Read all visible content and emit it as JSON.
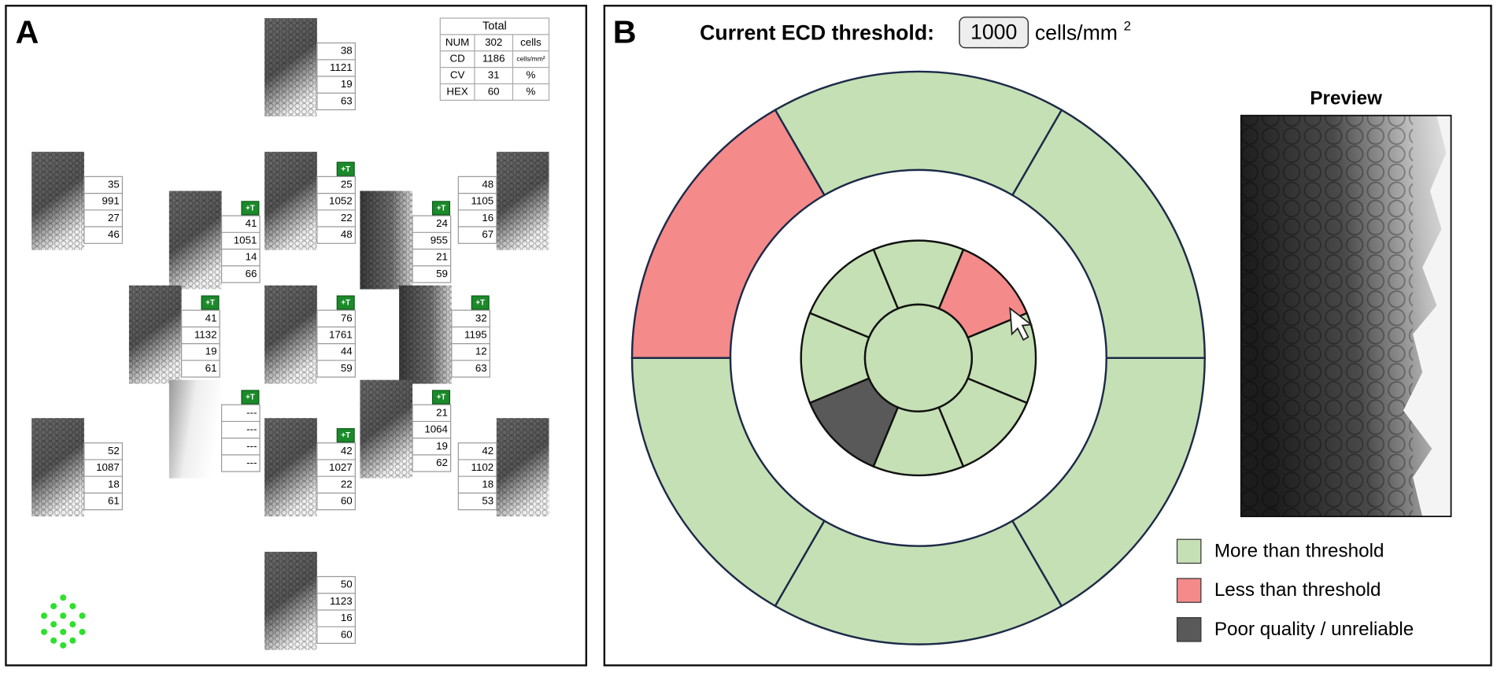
{
  "panel_a": {
    "label": "A",
    "total": {
      "title": "Total",
      "rows": [
        [
          "NUM",
          "302",
          "cells"
        ],
        [
          "CD",
          "1186",
          "cells/mm²"
        ],
        [
          "CV",
          "31",
          "%"
        ],
        [
          "HEX",
          "60",
          "%"
        ]
      ]
    },
    "tiles": [
      {
        "values": [
          "38",
          "1121",
          "19",
          "63"
        ]
      },
      {
        "values": [
          "35",
          "991",
          "27",
          "46"
        ]
      },
      {
        "values": [
          "25",
          "1052",
          "22",
          "48"
        ],
        "badge": "+T"
      },
      {
        "values": [
          "41",
          "1051",
          "14",
          "66"
        ],
        "badge": "+T"
      },
      {
        "values": [
          "24",
          "955",
          "21",
          "59"
        ],
        "badge": "+T"
      },
      {
        "values": [
          "48",
          "1105",
          "16",
          "67"
        ]
      },
      {
        "values": [
          "41",
          "1132",
          "19",
          "61"
        ],
        "badge": "+T"
      },
      {
        "values": [
          "76",
          "1761",
          "44",
          "59"
        ],
        "badge": "+T"
      },
      {
        "values": [
          "32",
          "1195",
          "12",
          "63"
        ],
        "badge": "+T"
      },
      {
        "values": [
          "---",
          "---",
          "---",
          "---"
        ],
        "badge": "+T"
      },
      {
        "values": [
          "21",
          "1064",
          "19",
          "62"
        ],
        "badge": "+T"
      },
      {
        "values": [
          "42",
          "1027",
          "22",
          "60"
        ],
        "badge": "+T"
      },
      {
        "values": [
          "52",
          "1087",
          "18",
          "61"
        ]
      },
      {
        "values": [
          "42",
          "1102",
          "18",
          "53"
        ]
      },
      {
        "values": [
          "50",
          "1123",
          "16",
          "60"
        ]
      }
    ]
  },
  "panel_b": {
    "label": "B",
    "title": "Current ECD threshold:",
    "threshold": "1000",
    "unit": "cells/mm",
    "unit_sup": "2",
    "preview_title": "Preview",
    "legend": [
      {
        "label": "More than threshold",
        "color": "#c5e0b4"
      },
      {
        "label": "Less than threshold",
        "color": "#f48a8a"
      },
      {
        "label": "Poor quality / unreliable",
        "color": "#595959"
      }
    ],
    "outer_ring": [
      "#c5e0b4",
      "#c5e0b4",
      "#f48a8a",
      "#c5e0b4",
      "#c5e0b4",
      "#c5e0b4"
    ],
    "inner_ring": [
      "#c5e0b4",
      "#f48a8a",
      "#c5e0b4",
      "#c5e0b4",
      "#c5e0b4",
      "#595959",
      "#c5e0b4",
      "#c5e0b4"
    ],
    "center": "#c5e0b4"
  }
}
